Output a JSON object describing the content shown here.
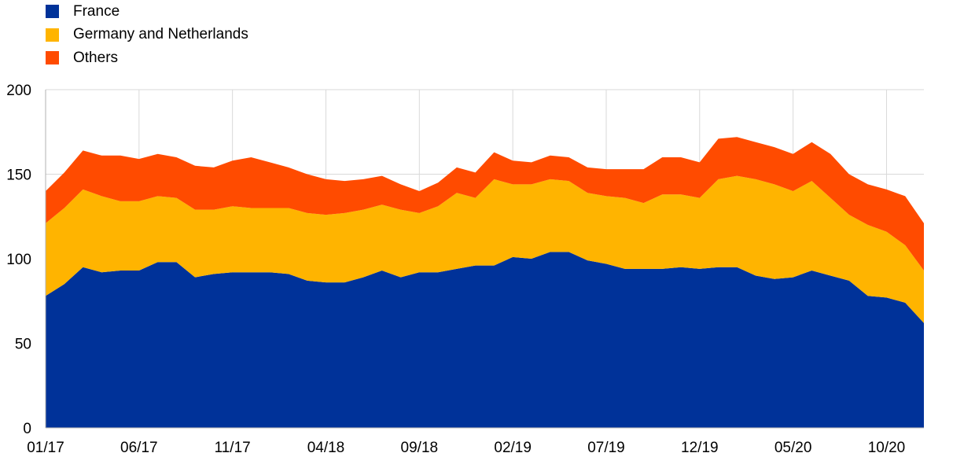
{
  "chart_data": {
    "type": "area",
    "stacked": true,
    "title": "",
    "xlabel": "",
    "ylabel": "",
    "ylim": [
      0,
      200
    ],
    "yticks": [
      0,
      50,
      100,
      150,
      200
    ],
    "grid": true,
    "legend_position": "top-left",
    "x": [
      "01/17",
      "02/17",
      "03/17",
      "04/17",
      "05/17",
      "06/17",
      "07/17",
      "08/17",
      "09/17",
      "10/17",
      "11/17",
      "12/17",
      "01/18",
      "02/18",
      "03/18",
      "04/18",
      "05/18",
      "06/18",
      "07/18",
      "08/18",
      "09/18",
      "10/18",
      "11/18",
      "12/18",
      "01/19",
      "02/19",
      "03/19",
      "04/19",
      "05/19",
      "06/19",
      "07/19",
      "08/19",
      "09/19",
      "10/19",
      "11/19",
      "12/19",
      "01/20",
      "02/20",
      "03/20",
      "04/20",
      "05/20",
      "06/20",
      "07/20",
      "08/20",
      "09/20",
      "10/20",
      "11/20",
      "12/20"
    ],
    "xtick_labels": [
      "01/17",
      "06/17",
      "11/17",
      "04/18",
      "09/18",
      "02/19",
      "07/19",
      "12/19",
      "05/20",
      "10/20"
    ],
    "series": [
      {
        "name": "France",
        "color": "#003299",
        "values": [
          78,
          85,
          95,
          92,
          93,
          93,
          98,
          98,
          89,
          91,
          92,
          92,
          92,
          91,
          87,
          86,
          86,
          89,
          93,
          89,
          92,
          92,
          94,
          96,
          96,
          101,
          100,
          104,
          104,
          99,
          97,
          94,
          94,
          94,
          95,
          94,
          95,
          95,
          90,
          88,
          89,
          93,
          90,
          87,
          78,
          77,
          74,
          62
        ]
      },
      {
        "name": "Germany and Netherlands",
        "color": "#FFB400",
        "values": [
          43,
          45,
          46,
          45,
          41,
          41,
          39,
          38,
          40,
          38,
          39,
          38,
          38,
          39,
          40,
          40,
          41,
          40,
          39,
          40,
          35,
          39,
          45,
          40,
          51,
          43,
          44,
          43,
          42,
          40,
          40,
          42,
          39,
          44,
          43,
          42,
          52,
          54,
          57,
          56,
          51,
          53,
          46,
          39,
          42,
          39,
          34,
          31
        ]
      },
      {
        "name": "Others",
        "color": "#FF4B00",
        "values": [
          19,
          21,
          23,
          24,
          27,
          25,
          25,
          24,
          26,
          25,
          27,
          30,
          27,
          24,
          23,
          21,
          19,
          18,
          17,
          15,
          13,
          14,
          15,
          15,
          16,
          14,
          13,
          14,
          14,
          15,
          16,
          17,
          20,
          22,
          22,
          21,
          24,
          23,
          22,
          22,
          22,
          23,
          26,
          24,
          24,
          25,
          29,
          28
        ]
      }
    ]
  }
}
